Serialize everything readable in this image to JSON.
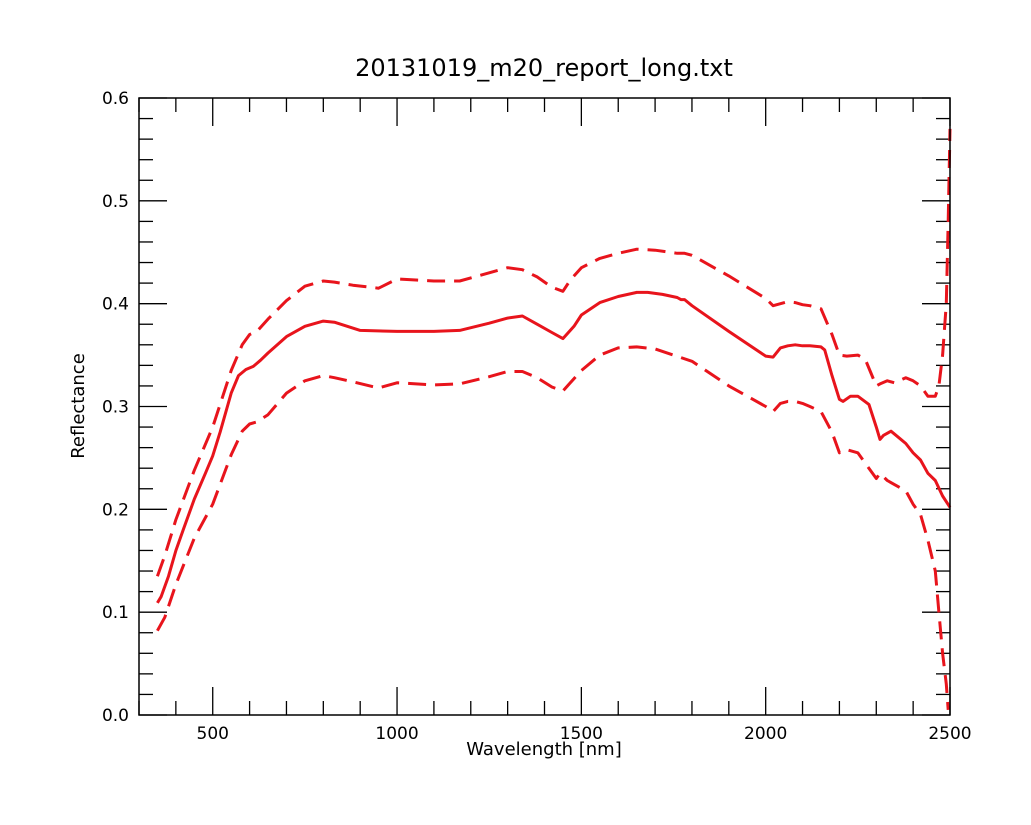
{
  "chart_data": {
    "type": "line",
    "title": "20131019_m20_report_long.txt",
    "xlabel": "Wavelength [nm]",
    "ylabel": "Reflectance",
    "xlim": [
      300,
      2500
    ],
    "ylim": [
      0.0,
      0.6
    ],
    "x_major_ticks": [
      500,
      1000,
      1500,
      2000,
      2500
    ],
    "x_minor_step": 100,
    "y_major_ticks": [
      0.0,
      0.1,
      0.2,
      0.3,
      0.4,
      0.5,
      0.6
    ],
    "y_minor_step": 0.02,
    "x_tick_labels": [
      "500",
      "1000",
      "1500",
      "2000",
      "2500"
    ],
    "y_tick_labels": [
      "0.0",
      "0.1",
      "0.2",
      "0.3",
      "0.4",
      "0.5",
      "0.6"
    ],
    "grid": false,
    "legend": "none",
    "color": "#e8141c",
    "series": [
      {
        "style": "solid",
        "x": [
          350,
          360,
          380,
          400,
          420,
          450,
          480,
          500,
          520,
          550,
          570,
          590,
          610,
          630,
          650,
          700,
          750,
          800,
          830,
          900,
          1000,
          1100,
          1170,
          1250,
          1300,
          1340,
          1380,
          1420,
          1450,
          1470,
          1480,
          1500,
          1550,
          1600,
          1650,
          1680,
          1720,
          1760,
          1770,
          1780,
          1800,
          1900,
          2000,
          2020,
          2040,
          2060,
          2080,
          2100,
          2120,
          2150,
          2160,
          2180,
          2200,
          2210,
          2230,
          2250,
          2280,
          2300,
          2310,
          2320,
          2340,
          2360,
          2380,
          2400,
          2420,
          2440,
          2460,
          2480,
          2500
        ],
        "y": [
          0.109,
          0.115,
          0.135,
          0.16,
          0.18,
          0.21,
          0.235,
          0.252,
          0.275,
          0.313,
          0.33,
          0.336,
          0.339,
          0.345,
          0.352,
          0.368,
          0.378,
          0.383,
          0.382,
          0.374,
          0.373,
          0.373,
          0.374,
          0.381,
          0.386,
          0.388,
          0.38,
          0.372,
          0.366,
          0.374,
          0.378,
          0.389,
          0.401,
          0.407,
          0.411,
          0.411,
          0.409,
          0.406,
          0.404,
          0.404,
          0.398,
          0.373,
          0.349,
          0.348,
          0.357,
          0.359,
          0.36,
          0.359,
          0.359,
          0.358,
          0.355,
          0.33,
          0.307,
          0.305,
          0.31,
          0.31,
          0.302,
          0.28,
          0.268,
          0.272,
          0.276,
          0.27,
          0.264,
          0.255,
          0.248,
          0.235,
          0.228,
          0.213,
          0.202
        ]
      },
      {
        "style": "dashed",
        "x": [
          350,
          370,
          400,
          450,
          500,
          550,
          580,
          600,
          620,
          650,
          700,
          750,
          800,
          830,
          880,
          950,
          1000,
          1100,
          1170,
          1250,
          1300,
          1340,
          1380,
          1420,
          1450,
          1470,
          1500,
          1550,
          1600,
          1650,
          1700,
          1760,
          1780,
          1800,
          1900,
          2000,
          2020,
          2040,
          2060,
          2080,
          2100,
          2120,
          2150,
          2180,
          2200,
          2220,
          2250,
          2270,
          2300,
          2310,
          2330,
          2350,
          2380,
          2400,
          2420,
          2440,
          2460,
          2470,
          2480,
          2490,
          2495,
          2500
        ],
        "y": [
          0.135,
          0.155,
          0.19,
          0.238,
          0.28,
          0.335,
          0.36,
          0.37,
          0.373,
          0.385,
          0.403,
          0.417,
          0.422,
          0.421,
          0.418,
          0.415,
          0.424,
          0.422,
          0.422,
          0.43,
          0.435,
          0.433,
          0.426,
          0.416,
          0.412,
          0.423,
          0.435,
          0.444,
          0.449,
          0.453,
          0.452,
          0.449,
          0.449,
          0.447,
          0.427,
          0.405,
          0.398,
          0.4,
          0.402,
          0.401,
          0.399,
          0.398,
          0.395,
          0.37,
          0.35,
          0.349,
          0.35,
          0.346,
          0.32,
          0.322,
          0.325,
          0.323,
          0.328,
          0.325,
          0.32,
          0.31,
          0.31,
          0.32,
          0.35,
          0.4,
          0.48,
          0.57
        ]
      },
      {
        "style": "dashed",
        "x": [
          350,
          370,
          400,
          450,
          500,
          550,
          580,
          600,
          620,
          650,
          700,
          750,
          800,
          830,
          880,
          950,
          1000,
          1100,
          1170,
          1250,
          1300,
          1340,
          1380,
          1420,
          1450,
          1470,
          1500,
          1550,
          1600,
          1650,
          1700,
          1800,
          1900,
          2000,
          2020,
          2040,
          2060,
          2080,
          2100,
          2120,
          2150,
          2180,
          2200,
          2220,
          2250,
          2270,
          2300,
          2310,
          2330,
          2350,
          2380,
          2400,
          2420,
          2440,
          2450,
          2460,
          2470,
          2480,
          2490,
          2495
        ],
        "y": [
          0.082,
          0.095,
          0.127,
          0.172,
          0.205,
          0.253,
          0.276,
          0.283,
          0.285,
          0.292,
          0.313,
          0.325,
          0.33,
          0.328,
          0.324,
          0.318,
          0.323,
          0.321,
          0.322,
          0.329,
          0.334,
          0.334,
          0.328,
          0.319,
          0.315,
          0.323,
          0.335,
          0.35,
          0.357,
          0.358,
          0.356,
          0.344,
          0.32,
          0.3,
          0.295,
          0.303,
          0.305,
          0.305,
          0.303,
          0.3,
          0.295,
          0.275,
          0.255,
          0.258,
          0.255,
          0.245,
          0.23,
          0.235,
          0.228,
          0.224,
          0.218,
          0.205,
          0.195,
          0.17,
          0.155,
          0.14,
          0.1,
          0.06,
          0.03,
          0.005
        ]
      }
    ]
  }
}
